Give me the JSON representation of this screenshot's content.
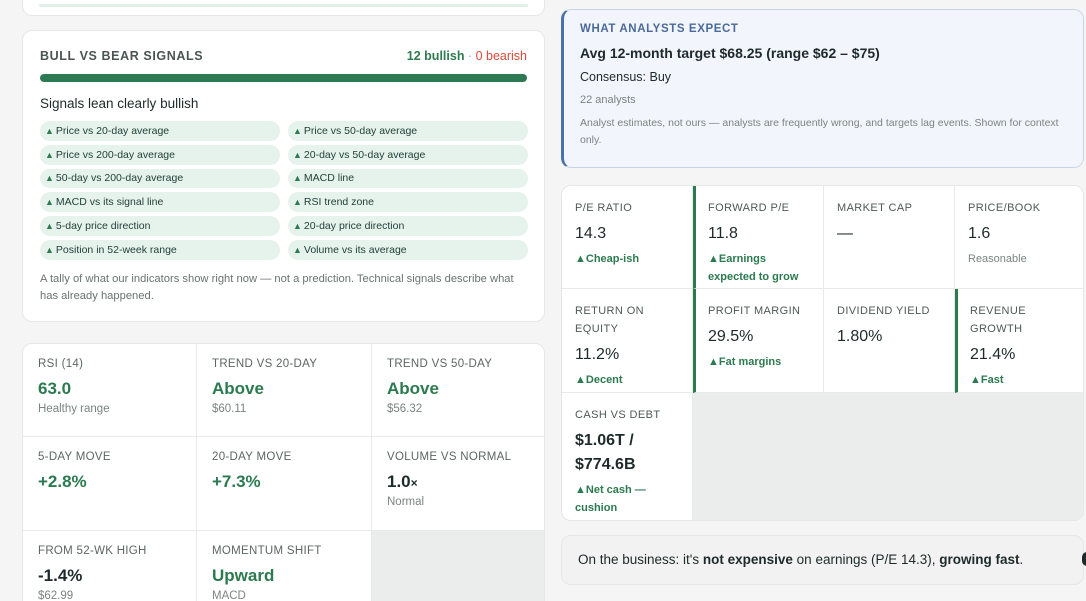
{
  "bull_bear": {
    "title": "BULL VS BEAR SIGNALS",
    "bullish": "12 bullish",
    "separator": " · ",
    "bearish": "0 bearish",
    "lean": "Signals lean clearly bullish",
    "signals": [
      "Price vs 20-day average",
      "Price vs 50-day average",
      "Price vs 200-day average",
      "20-day vs 50-day average",
      "50-day vs 200-day average",
      "MACD line",
      "MACD vs its signal line",
      "RSI trend zone",
      "5-day price direction",
      "20-day price direction",
      "Position in 52-week range",
      "Volume vs its average"
    ],
    "note": "A tally of what our indicators show right now — not a prediction. Technical signals describe what has already happened."
  },
  "technicals": [
    {
      "label": "RSI (14)",
      "value": "63.0",
      "sub": "Healthy range",
      "color": "#2c7a4f"
    },
    {
      "label": "TREND VS 20-DAY",
      "value": "Above",
      "sub": "$60.11",
      "color": "#2c7a4f"
    },
    {
      "label": "TREND VS 50-DAY",
      "value": "Above",
      "sub": "$56.32",
      "color": "#2c7a4f"
    },
    {
      "label": "5-DAY MOVE",
      "value": "+2.8%",
      "sub": "",
      "color": "#2c7a4f"
    },
    {
      "label": "20-DAY MOVE",
      "value": "+7.3%",
      "sub": "",
      "color": "#2c7a4f"
    },
    {
      "label": "VOLUME VS NORMAL",
      "value": "1.0",
      "value_suffix": "×",
      "sub": "Normal",
      "color": "#1e2a2a"
    },
    {
      "label": "FROM 52-WK HIGH",
      "value": "-1.4%",
      "sub": "$62.99",
      "color": "#1e2a2a"
    },
    {
      "label": "MOMENTUM SHIFT",
      "value": "Upward",
      "sub": "MACD",
      "color": "#2c7a4f"
    }
  ],
  "analysts": {
    "tag": "WHAT ANALYSTS EXPECT",
    "target": "Avg 12-month target $68.25 (range $62 – $75)",
    "consensus": "Consensus: Buy",
    "count": "22 analysts",
    "note": "Analyst estimates, not ours — analysts are frequently wrong, and targets lag events. Shown for context only."
  },
  "fundamentals": [
    {
      "label": "P/E RATIO",
      "value": "14.3",
      "tag": "▲Cheap-ish"
    },
    {
      "label": "FORWARD P/E",
      "value": "11.8",
      "tag": "▲Earnings expected to grow"
    },
    {
      "label": "MARKET CAP",
      "value": "—",
      "tag": ""
    },
    {
      "label": "PRICE/BOOK",
      "value": "1.6",
      "tag": "Reasonable"
    },
    {
      "label": "RETURN ON EQUITY",
      "value": "11.2%",
      "tag": "▲Decent"
    },
    {
      "label": "PROFIT MARGIN",
      "value": "29.5%",
      "tag": "▲Fat margins"
    },
    {
      "label": "DIVIDEND YIELD",
      "value": "1.80%",
      "tag": ""
    },
    {
      "label": "REVENUE GROWTH",
      "value": "21.4%",
      "tag": "▲Fast"
    },
    {
      "label": "CASH VS DEBT",
      "value": "$1.06T / $774.6B",
      "tag": "▲Net cash — cushion"
    }
  ],
  "business": {
    "prefix": "On the business: it's ",
    "bold1": "not expensive",
    "middle": " on earnings (P/E 14.3), ",
    "bold2": "growing fast",
    "suffix": "."
  }
}
